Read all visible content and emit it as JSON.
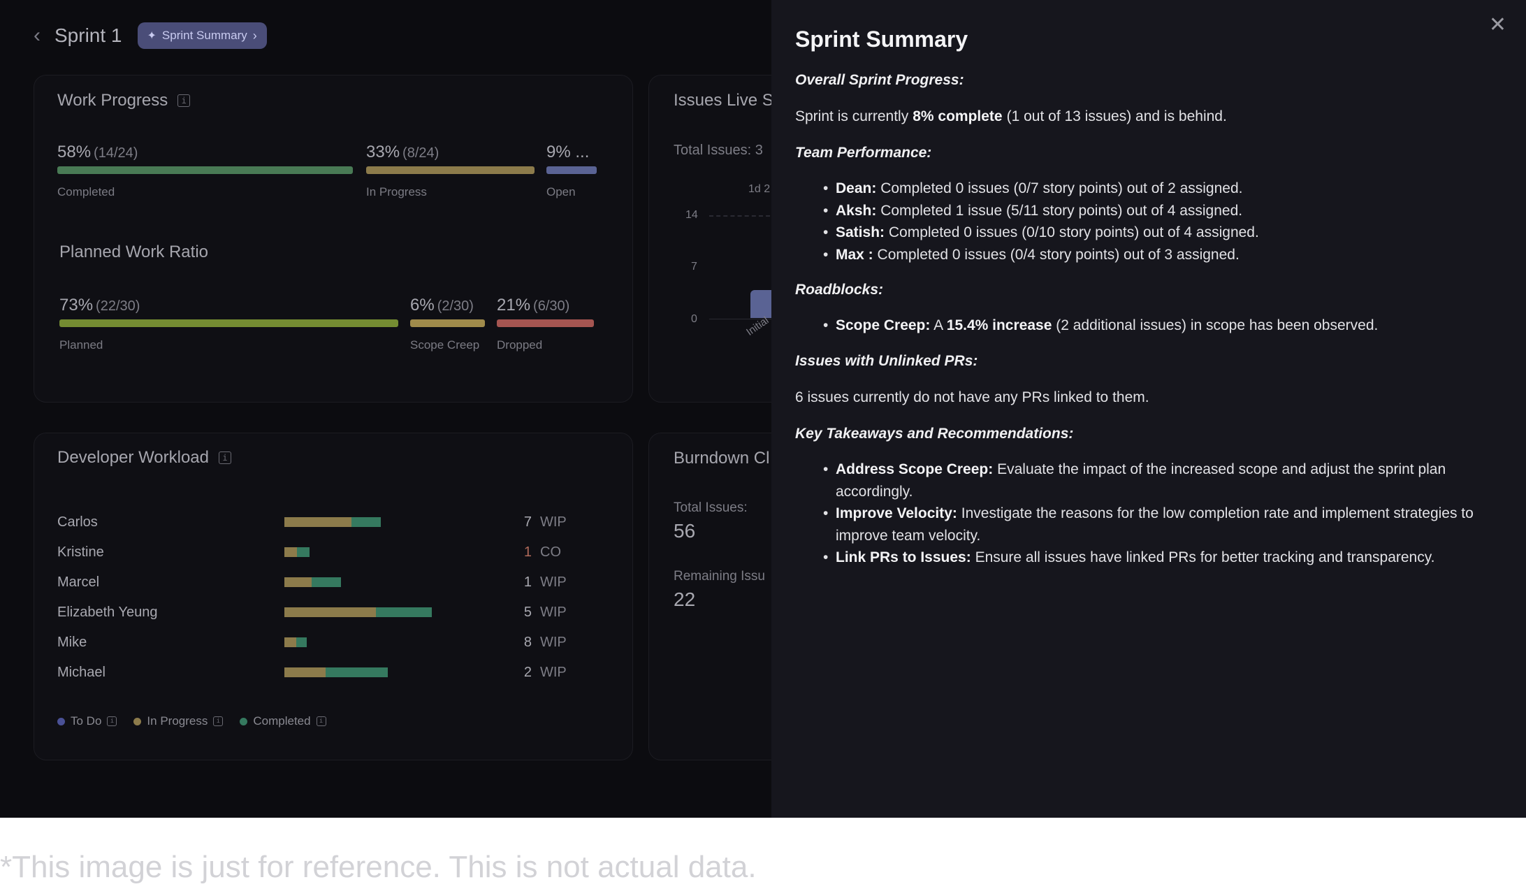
{
  "header": {
    "back_icon": "chevron-left-icon",
    "title": "Sprint 1",
    "pill_label": "Sprint Summary"
  },
  "colors": {
    "completed": "#497a55",
    "in_progress": "#8c7b4b",
    "open": "#5a6394",
    "planned": "#748c32",
    "scope_creep": "#a08b4b",
    "dropped": "#a55551",
    "todo": "#4a5196",
    "wip_green": "#35795f"
  },
  "work_progress": {
    "title": "Work Progress",
    "segments": [
      {
        "pct": "58%",
        "sub": "(14/24)",
        "label": "Completed",
        "value": 58
      },
      {
        "pct": "33%",
        "sub": "(8/24)",
        "label": "In Progress",
        "value": 33
      },
      {
        "pct": "9% ...",
        "sub": "",
        "label": "Open",
        "value": 9
      }
    ]
  },
  "planned_ratio": {
    "title": "Planned Work Ratio",
    "segments": [
      {
        "pct": "73%",
        "sub": "(22/30)",
        "label": "Planned",
        "value": 73
      },
      {
        "pct": "6%",
        "sub": "(2/30)",
        "label": "Scope Creep",
        "value": 6
      },
      {
        "pct": "21%",
        "sub": "(6/30)",
        "label": "Dropped",
        "value": 21
      }
    ]
  },
  "issues_live": {
    "title": "Issues Live S",
    "total_label": "Total Issues: 3",
    "top_label": "1d 2",
    "y_ticks": [
      "14",
      "7",
      "0"
    ],
    "x_label": "Initial"
  },
  "developer_workload": {
    "title": "Developer Workload",
    "rows": [
      {
        "name": "Carlos",
        "in_progress": 69,
        "completed": 30,
        "count": "7",
        "status": "WIP"
      },
      {
        "name": "Kristine",
        "in_progress": 13,
        "completed": 13,
        "count": "1",
        "status": "CO"
      },
      {
        "name": "Marcel",
        "in_progress": 28,
        "completed": 30,
        "count": "1",
        "status": "WIP"
      },
      {
        "name": "Elizabeth Yeung",
        "in_progress": 94,
        "completed": 57,
        "count": "5",
        "status": "WIP"
      },
      {
        "name": "Mike",
        "in_progress": 12,
        "completed": 11,
        "count": "8",
        "status": "WIP"
      },
      {
        "name": "Michael",
        "in_progress": 42,
        "completed": 64,
        "count": "2",
        "status": "WIP"
      }
    ],
    "legend": [
      {
        "label": "To Do"
      },
      {
        "label": "In Progress"
      },
      {
        "label": "Completed"
      }
    ]
  },
  "burndown": {
    "title": "Burndown Cl",
    "total_label": "Total Issues:",
    "total_value": "56",
    "remaining_label": "Remaining Issu",
    "remaining_value": "22"
  },
  "panel": {
    "title": "Sprint Summary",
    "close_icon": "close-icon",
    "overall_heading": "Overall Sprint Progress:",
    "overall_pre": "Sprint is currently",
    "overall_bold": "8% complete",
    "overall_post": "(1 out of 13 issues) and is behind.",
    "team_heading": "Team Performance:",
    "team": [
      {
        "name": "Dean:",
        "text": "Completed 0 issues (0/7 story points) out of 2 assigned."
      },
      {
        "name": "Aksh:",
        "text": "Completed 1 issue (5/11 story points) out of 4 assigned."
      },
      {
        "name": "Satish:",
        "text": "Completed 0 issues (0/10 story points) out of 4 assigned."
      },
      {
        "name": "Max :",
        "text": "Completed 0 issues (0/4 story points) out of 3 assigned."
      }
    ],
    "roadblocks_heading": "Roadblocks:",
    "roadblock_name": "Scope Creep:",
    "roadblock_pre": "A",
    "roadblock_bold": "15.4% increase",
    "roadblock_post": "(2 additional issues) in scope has been observed.",
    "unlinked_heading": "Issues with Unlinked PRs:",
    "unlinked_text": "6 issues currently do not have any PRs linked to them.",
    "takeaways_heading": "Key Takeaways and Recommendations:",
    "takeaways": [
      {
        "name": "Address Scope Creep:",
        "text": "Evaluate the impact of the increased scope and adjust the sprint plan accordingly."
      },
      {
        "name": "Improve Velocity:",
        "text": "Investigate the reasons for the low completion rate and implement strategies to improve team velocity."
      },
      {
        "name": "Link PRs to Issues:",
        "text": "Ensure all issues have linked PRs for better tracking and transparency."
      }
    ]
  },
  "disclaimer": "*This image is just for reference. This is not actual data."
}
